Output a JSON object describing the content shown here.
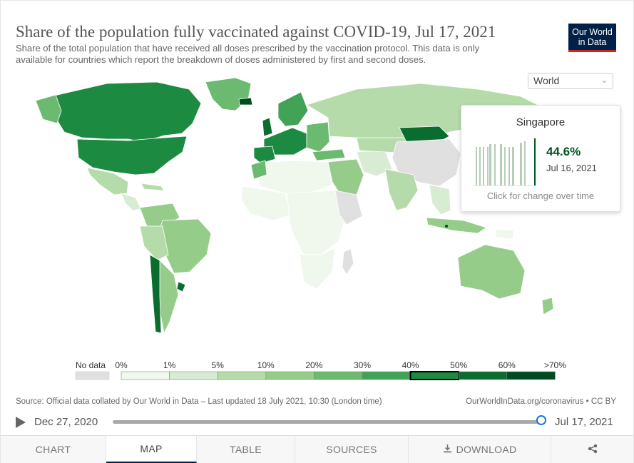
{
  "header": {
    "title": "Share of the population fully vaccinated against COVID-19, Jul 17, 2021",
    "subtitle": "Share of the total population that have received all doses prescribed by the vaccination protocol. This data is only available for countries which report the breakdown of doses administered by first and second doses.",
    "logo_line1": "Our World",
    "logo_line2": "in Data"
  },
  "region_select": {
    "value": "World",
    "icon": "chevron-down-icon"
  },
  "tooltip": {
    "country": "Singapore",
    "value": "44.6%",
    "date": "Jul 16, 2021",
    "hint": "Click for change over time"
  },
  "legend": {
    "no_data": "No data",
    "ticks": [
      "0%",
      "1%",
      "5%",
      "10%",
      "20%",
      "30%",
      "40%",
      "50%",
      "60%",
      ">70%"
    ],
    "colors": [
      "#f0f8ee",
      "#d7ecd2",
      "#b6dbaa",
      "#96cc8a",
      "#6cb970",
      "#42a356",
      "#1d8a41",
      "#0a6d2f",
      "#004b21"
    ],
    "no_data_color": "#e0e0e0",
    "highlighted_bin": "40%-50%"
  },
  "footer": {
    "source": "Source: Official data collated by Our World in Data – Last updated 18 July 2021, 10:30 (London time)",
    "credit": "OurWorldInData.org/coronavirus • CC BY"
  },
  "timeline": {
    "start": "Dec 27, 2020",
    "end": "Jul 17, 2021",
    "position": 1.0
  },
  "tabs": [
    {
      "label": "CHART",
      "active": false
    },
    {
      "label": "MAP",
      "active": true
    },
    {
      "label": "TABLE",
      "active": false
    },
    {
      "label": "SOURCES",
      "active": false
    },
    {
      "label": "DOWNLOAD",
      "active": false
    },
    {
      "label": "",
      "active": false
    }
  ]
}
